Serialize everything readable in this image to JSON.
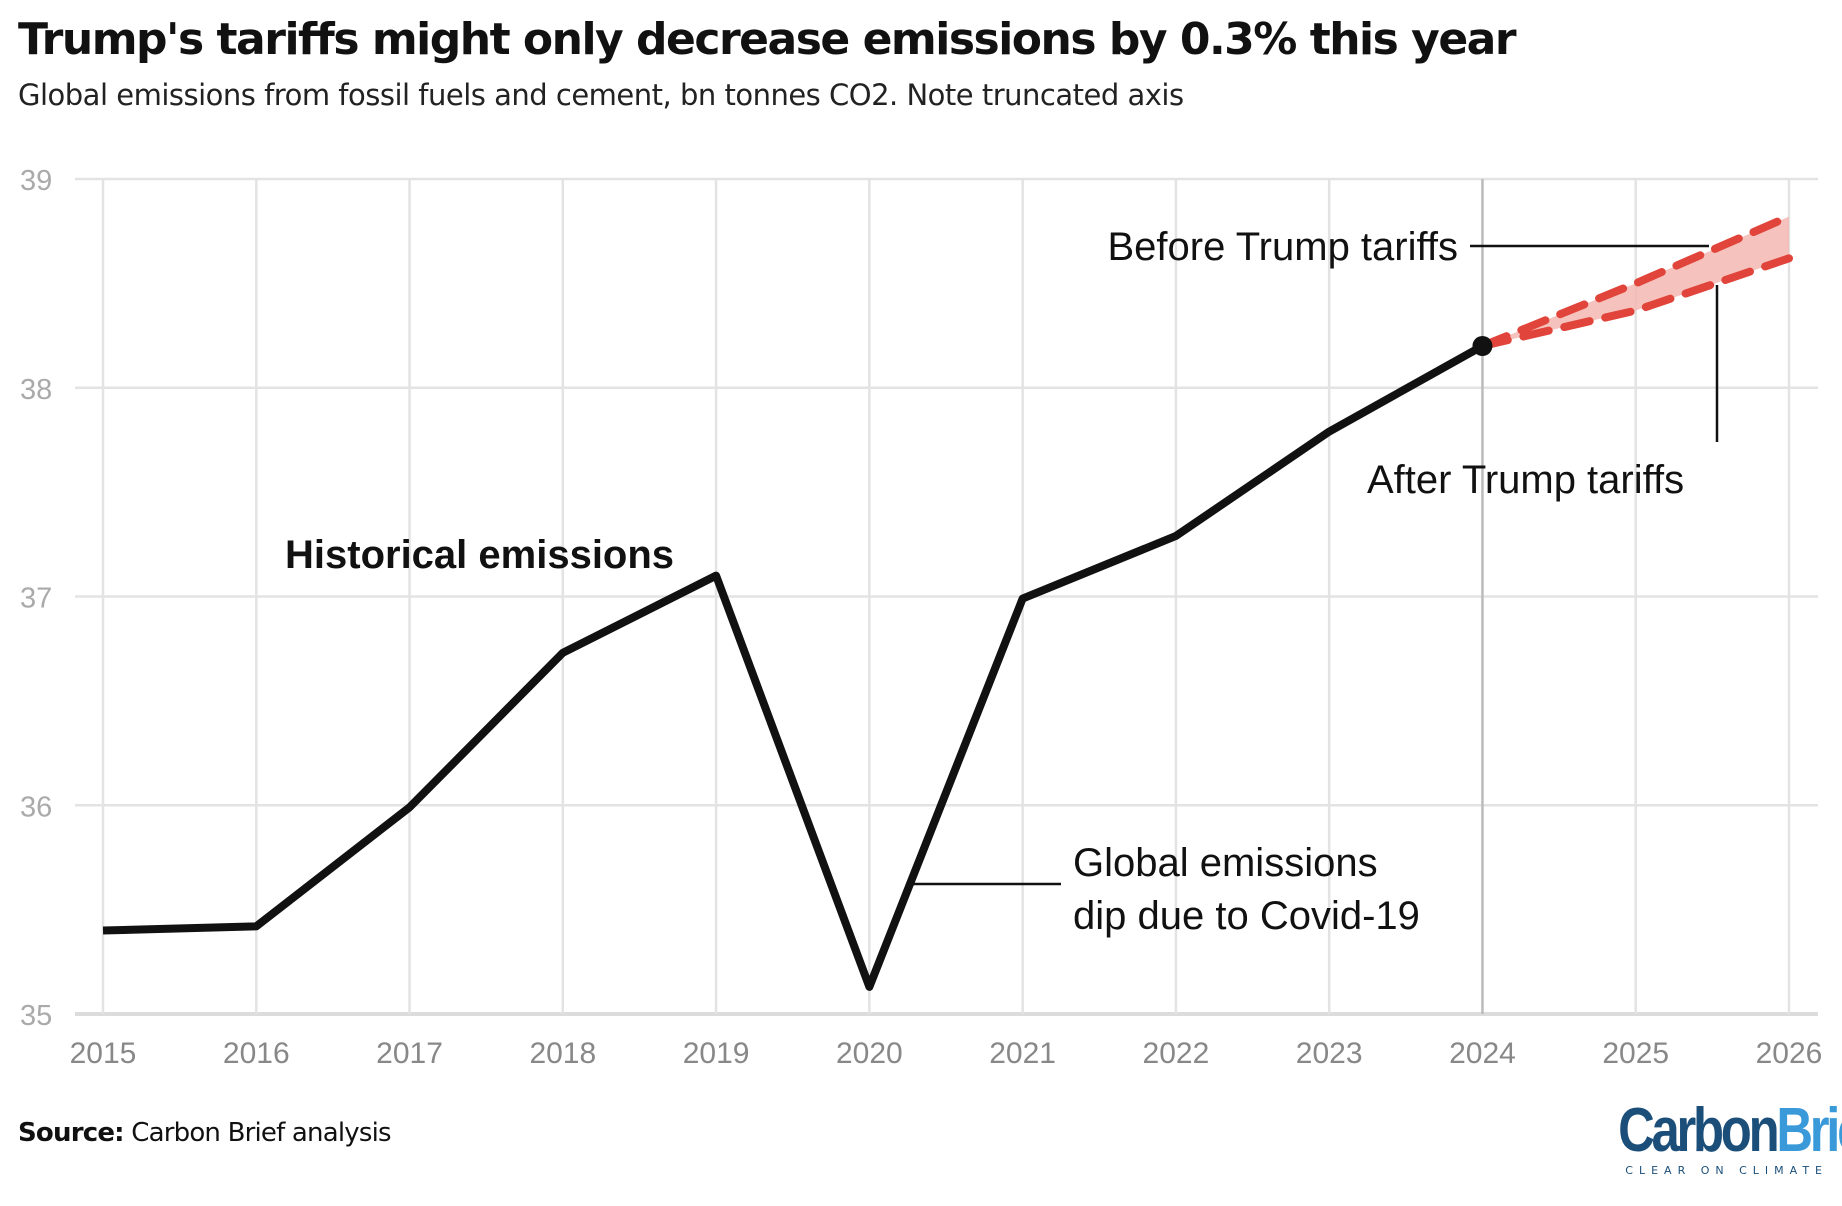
{
  "title": "Trump's tariffs might only decrease emissions by 0.3% this year",
  "subtitle": "Global emissions from fossil fuels and cement, bn tonnes CO2. Note truncated axis",
  "source": {
    "label": "Source:",
    "text": "Carbon Brief analysis"
  },
  "logo": {
    "part1": "Carbon",
    "part2": "Brief",
    "tagline": "CLEAR ON CLIMATE"
  },
  "colors": {
    "historical": "#111111",
    "projection": "#e0443a",
    "band": "#f4b7b1",
    "grid": "#e3e3e3",
    "tick": "#888888",
    "logo_dark": "#1b4f7a",
    "logo_light": "#3a9ad9"
  },
  "chart_data": {
    "type": "line",
    "title": "Trump's tariffs might only decrease emissions by 0.3% this year",
    "xlabel": "",
    "ylabel": "",
    "xlim": [
      2015,
      2026
    ],
    "ylim": [
      35,
      39
    ],
    "x_ticks": [
      "2015",
      "2016",
      "2017",
      "2018",
      "2019",
      "2020",
      "2021",
      "2022",
      "2023",
      "2024",
      "2025",
      "2026"
    ],
    "y_ticks": [
      "35",
      "36",
      "37",
      "38",
      "39"
    ],
    "grid": true,
    "series": [
      {
        "name": "Historical emissions",
        "style": "solid",
        "x": [
          2015,
          2016,
          2017,
          2018,
          2019,
          2020,
          2021,
          2022,
          2023,
          2024
        ],
        "y": [
          35.4,
          35.42,
          35.99,
          36.73,
          37.1,
          35.13,
          36.99,
          37.29,
          37.79,
          38.2
        ]
      },
      {
        "name": "Before Trump tariffs",
        "style": "dashed",
        "x": [
          2024,
          2025,
          2026
        ],
        "y": [
          38.2,
          38.5,
          38.82
        ]
      },
      {
        "name": "After Trump tariffs",
        "style": "dashed",
        "x": [
          2024,
          2025,
          2026
        ],
        "y": [
          38.2,
          38.37,
          38.62
        ]
      }
    ],
    "annotations": {
      "historical": "Historical emissions",
      "before": "Before Trump tariffs",
      "after": "After Trump tariffs",
      "covid_line1": "Global emissions",
      "covid_line2": "dip due to Covid-19"
    }
  }
}
